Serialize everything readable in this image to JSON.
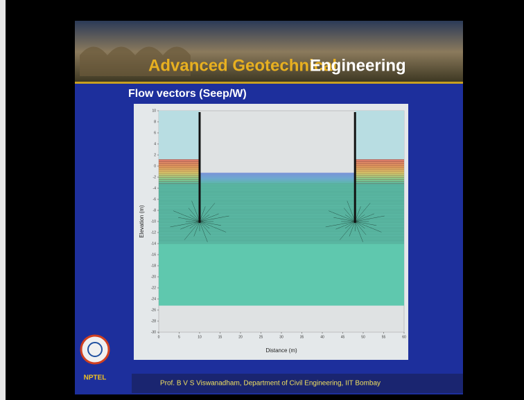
{
  "slide": {
    "banner_title_part1": "Advanced Geotechnical",
    "banner_title_part2": "Engineering",
    "title": "Flow vectors (Seep/W)",
    "logo": "NPTEL",
    "footer": "Prof. B V S Viswanadham, Department of Civil Engineering, IIT Bombay"
  },
  "plot": {
    "x_label": "Distance (m)",
    "y_label": "Elevation (m)",
    "x_ticks": [
      0,
      5,
      10,
      15,
      20,
      25,
      30,
      35,
      40,
      45,
      50,
      55,
      60
    ],
    "y_ticks": [
      10,
      8,
      6,
      4,
      2,
      0,
      -2,
      -4,
      -6,
      -8,
      -10,
      -12,
      -14,
      -16,
      -18,
      -20,
      -22,
      -24,
      -26,
      -28,
      -30
    ]
  }
}
